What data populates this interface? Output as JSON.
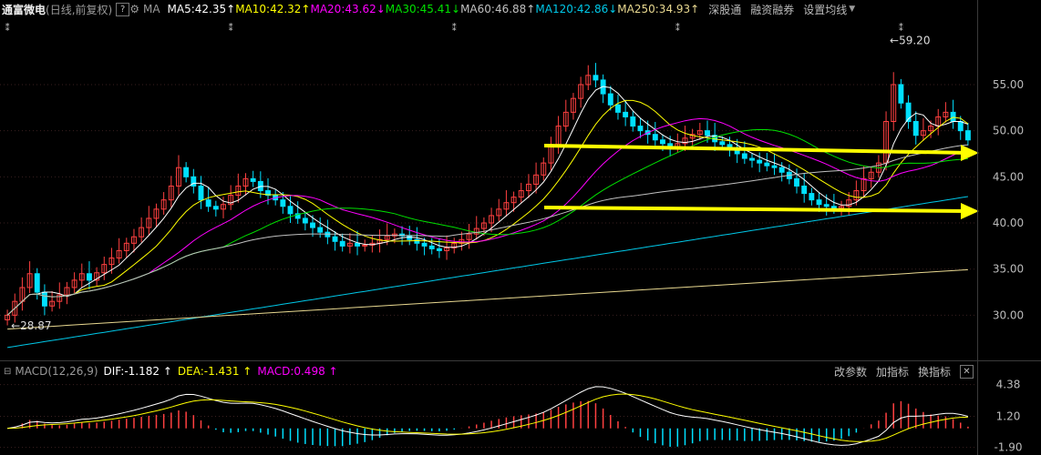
{
  "top_bar": {
    "stock_name": "通富微电",
    "period_info": "(日线,前复权)",
    "help_label": "?",
    "ma_label": "MA",
    "ma_lines": [
      {
        "text": "MA5:42.35",
        "arrow": "↑",
        "color": "#ffffff"
      },
      {
        "text": "MA10:42.32",
        "arrow": "↑",
        "color": "#ffff00"
      },
      {
        "text": "MA20:43.62",
        "arrow": "↓",
        "color": "#ff00ff"
      },
      {
        "text": "MA30:45.41",
        "arrow": "↓",
        "color": "#00e000"
      },
      {
        "text": "MA60:46.88",
        "arrow": "↑",
        "color": "#c0c0c0"
      },
      {
        "text": "MA120:42.86",
        "arrow": "↓",
        "color": "#00c8e8"
      },
      {
        "text": "MA250:34.93",
        "arrow": "↑",
        "color": "#e8d890"
      }
    ],
    "tools": [
      "深股通",
      "融资融券",
      "设置均线"
    ]
  },
  "macd_bar": {
    "title": "MACD(12,26,9)",
    "dif": {
      "text": "DIF:-1.182",
      "arrow": "↑",
      "color": "#ffffff"
    },
    "dea": {
      "text": "DEA:-1.431",
      "arrow": "↑",
      "color": "#ffff00"
    },
    "macd": {
      "text": "MACD:0.498",
      "arrow": "↑",
      "color": "#ff00ff"
    },
    "tools": [
      "改参数",
      "加指标",
      "换指标"
    ],
    "close_label": "✕"
  },
  "colors": {
    "up": "#ff4040",
    "down": "#00e0ff",
    "trend_arrow": "#ffff00",
    "grid": "#3a2020"
  },
  "chart_data": [
    {
      "type": "candlestick",
      "title": "通富微电",
      "subtitle": "(日线,前复权)",
      "ylim": [
        25.5,
        62
      ],
      "y_ticks": [
        30.0,
        35.0,
        40.0,
        45.0,
        50.0,
        55.0
      ],
      "y_tick_labels": [
        "30.00",
        "35.00",
        "40.00",
        "45.00",
        "50.00",
        "55.00"
      ],
      "grid": true,
      "annotations": [
        {
          "text": "59.20",
          "index": 118,
          "value": 59.2,
          "kind": "high"
        },
        {
          "text": "28.87",
          "index": 0,
          "value": 28.87,
          "kind": "low"
        }
      ],
      "close": [
        30.0,
        31.5,
        33.0,
        34.5,
        32.5,
        31.0,
        31.5,
        32.2,
        33.0,
        33.8,
        34.5,
        33.8,
        34.6,
        35.5,
        36.2,
        37.0,
        37.8,
        38.5,
        39.5,
        40.5,
        41.5,
        42.5,
        44.0,
        46.0,
        45.0,
        44.0,
        42.5,
        41.8,
        41.5,
        42.0,
        43.0,
        44.0,
        44.8,
        44.5,
        43.5,
        43.0,
        42.5,
        41.8,
        41.0,
        40.5,
        40.0,
        39.5,
        39.0,
        38.5,
        38.0,
        37.5,
        37.8,
        37.5,
        37.6,
        37.8,
        38.2,
        38.6,
        38.8,
        38.6,
        38.2,
        37.8,
        37.5,
        37.2,
        37.0,
        37.3,
        37.8,
        38.2,
        38.8,
        39.4,
        40.0,
        40.8,
        41.5,
        42.2,
        42.8,
        43.5,
        44.2,
        45.2,
        46.5,
        48.5,
        50.5,
        52.0,
        53.5,
        55.0,
        56.0,
        55.5,
        54.0,
        52.8,
        52.0,
        51.5,
        50.5,
        50.0,
        49.6,
        49.0,
        48.6,
        48.2,
        48.6,
        49.2,
        49.6,
        50.0,
        49.5,
        48.8,
        48.5,
        48.0,
        47.5,
        47.0,
        46.8,
        46.5,
        46.2,
        46.0,
        45.5,
        44.8,
        44.0,
        43.2,
        42.5,
        42.0,
        41.8,
        41.6,
        41.8,
        42.5,
        43.5,
        44.8,
        45.5,
        46.5,
        51.0,
        55.0,
        53.0,
        51.0,
        49.5,
        50.0,
        50.5,
        51.5,
        52.0,
        51.0,
        50.0,
        49.0
      ],
      "open": [
        29.5,
        30.0,
        31.5,
        33.0,
        34.5,
        32.5,
        31.0,
        31.5,
        32.2,
        33.0,
        33.8,
        34.5,
        33.8,
        34.6,
        35.5,
        36.2,
        37.0,
        37.8,
        38.5,
        39.5,
        40.5,
        41.5,
        42.5,
        44.0,
        46.0,
        45.0,
        44.0,
        42.5,
        41.8,
        41.5,
        42.0,
        43.0,
        44.0,
        44.8,
        44.5,
        43.5,
        43.0,
        42.5,
        41.8,
        41.0,
        40.5,
        40.0,
        39.5,
        39.0,
        38.5,
        38.0,
        37.5,
        37.8,
        37.5,
        37.6,
        37.8,
        38.2,
        38.6,
        38.8,
        38.6,
        38.2,
        37.8,
        37.5,
        37.2,
        37.0,
        37.3,
        37.8,
        38.2,
        38.8,
        39.4,
        40.0,
        40.8,
        41.5,
        42.2,
        42.8,
        43.5,
        44.2,
        45.2,
        46.5,
        48.5,
        50.5,
        52.0,
        53.5,
        55.0,
        56.0,
        55.5,
        54.0,
        52.8,
        52.0,
        51.5,
        50.5,
        50.0,
        49.6,
        49.0,
        48.6,
        48.2,
        48.6,
        49.2,
        49.6,
        50.0,
        49.5,
        48.8,
        48.5,
        48.0,
        47.5,
        47.0,
        46.8,
        46.5,
        46.2,
        46.0,
        45.5,
        44.8,
        44.0,
        43.2,
        42.5,
        42.0,
        41.8,
        41.6,
        41.8,
        42.5,
        43.5,
        44.8,
        45.5,
        46.5,
        51.0,
        55.0,
        53.0,
        51.0,
        49.5,
        50.0,
        50.5,
        51.5,
        52.0,
        51.0,
        50.0
      ]
    },
    {
      "type": "bar",
      "title": "MACD(12,26,9)",
      "ylim": [
        -2.3,
        4.8
      ],
      "y_ticks": [
        4.38,
        1.2,
        -1.9
      ],
      "y_tick_labels": [
        "4.38",
        "1.20",
        "-1.90"
      ],
      "series": [
        {
          "name": "DIF",
          "color": "#ffffff"
        },
        {
          "name": "DEA",
          "color": "#ffff00"
        },
        {
          "name": "MACD",
          "color": "#ff00ff"
        }
      ]
    }
  ]
}
